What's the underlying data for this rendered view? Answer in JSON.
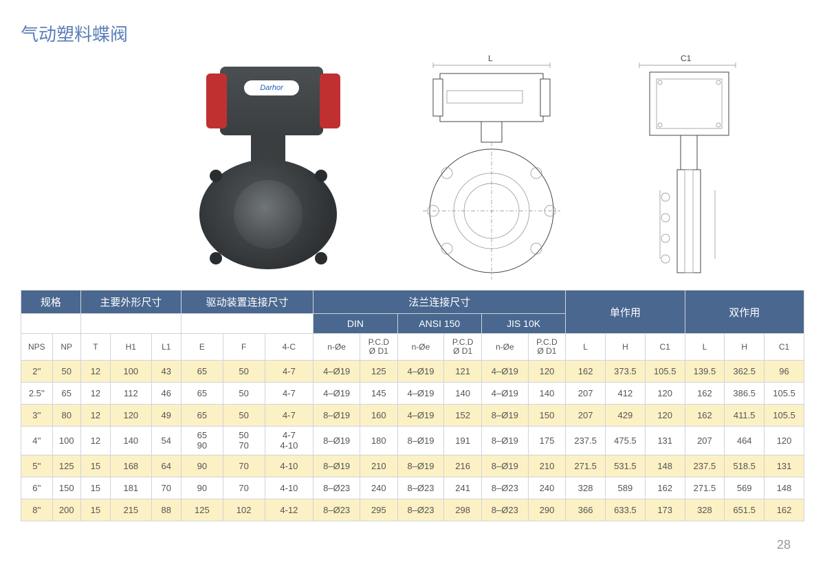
{
  "title": "气动塑料蝶阀",
  "brand_label": "Darhor",
  "page_number": "28",
  "drawing_labels": {
    "L": "L",
    "C1": "C1"
  },
  "table": {
    "group_headers": [
      "规格",
      "主要外形尺寸",
      "驱动装置连接尺寸",
      "法兰连接尺寸",
      "单作用",
      "双作用"
    ],
    "flange_sub": [
      "DIN",
      "ANSI 150",
      "JIS 10K"
    ],
    "columns": [
      "NPS",
      "NP",
      "T",
      "H1",
      "L1",
      "E",
      "F",
      "4-C",
      "n-Øe",
      "P.C.D\nØ D1",
      "n-Øe",
      "P.C.D\nØ D1",
      "n-Øe",
      "P.C.D\nØ D1",
      "L",
      "H",
      "C1",
      "L",
      "H",
      "C1"
    ],
    "rows": [
      [
        "2''",
        "50",
        "12",
        "100",
        "43",
        "65",
        "50",
        "4-7",
        "4–Ø19",
        "125",
        "4–Ø19",
        "121",
        "4–Ø19",
        "120",
        "162",
        "373.5",
        "105.5",
        "139.5",
        "362.5",
        "96"
      ],
      [
        "2.5''",
        "65",
        "12",
        "112",
        "46",
        "65",
        "50",
        "4-7",
        "4–Ø19",
        "145",
        "4–Ø19",
        "140",
        "4–Ø19",
        "140",
        "207",
        "412",
        "120",
        "162",
        "386.5",
        "105.5"
      ],
      [
        "3''",
        "80",
        "12",
        "120",
        "49",
        "65",
        "50",
        "4-7",
        "8–Ø19",
        "160",
        "4–Ø19",
        "152",
        "8–Ø19",
        "150",
        "207",
        "429",
        "120",
        "162",
        "411.5",
        "105.5"
      ],
      [
        "4''",
        "100",
        "12",
        "140",
        "54",
        "65\n90",
        "50\n70",
        "4-7\n4-10",
        "8–Ø19",
        "180",
        "8–Ø19",
        "191",
        "8–Ø19",
        "175",
        "237.5",
        "475.5",
        "131",
        "207",
        "464",
        "120"
      ],
      [
        "5''",
        "125",
        "15",
        "168",
        "64",
        "90",
        "70",
        "4-10",
        "8–Ø19",
        "210",
        "8–Ø19",
        "216",
        "8–Ø19",
        "210",
        "271.5",
        "531.5",
        "148",
        "237.5",
        "518.5",
        "131"
      ],
      [
        "6''",
        "150",
        "15",
        "181",
        "70",
        "90",
        "70",
        "4-10",
        "8–Ø23",
        "240",
        "8–Ø23",
        "241",
        "8–Ø23",
        "240",
        "328",
        "589",
        "162",
        "271.5",
        "569",
        "148"
      ],
      [
        "8''",
        "200",
        "15",
        "215",
        "88",
        "125",
        "102",
        "4-12",
        "8–Ø23",
        "295",
        "8–Ø23",
        "298",
        "8–Ø23",
        "290",
        "366",
        "633.5",
        "173",
        "328",
        "651.5",
        "162"
      ]
    ]
  },
  "styling": {
    "title_color": "#5b7fb8",
    "header_bg": "#49678f",
    "header_fg": "#ffffff",
    "row_odd_bg": "#fbf1c4",
    "row_even_bg": "#ffffff",
    "border_color": "#d0d4d8",
    "body_text_color": "#555555",
    "page_bg": "#ffffff",
    "font_family": "Arial, Microsoft YaHei",
    "title_fontsize_pt": 20,
    "header_fontsize_pt": 11,
    "body_fontsize_pt": 10,
    "col_count": 20
  }
}
